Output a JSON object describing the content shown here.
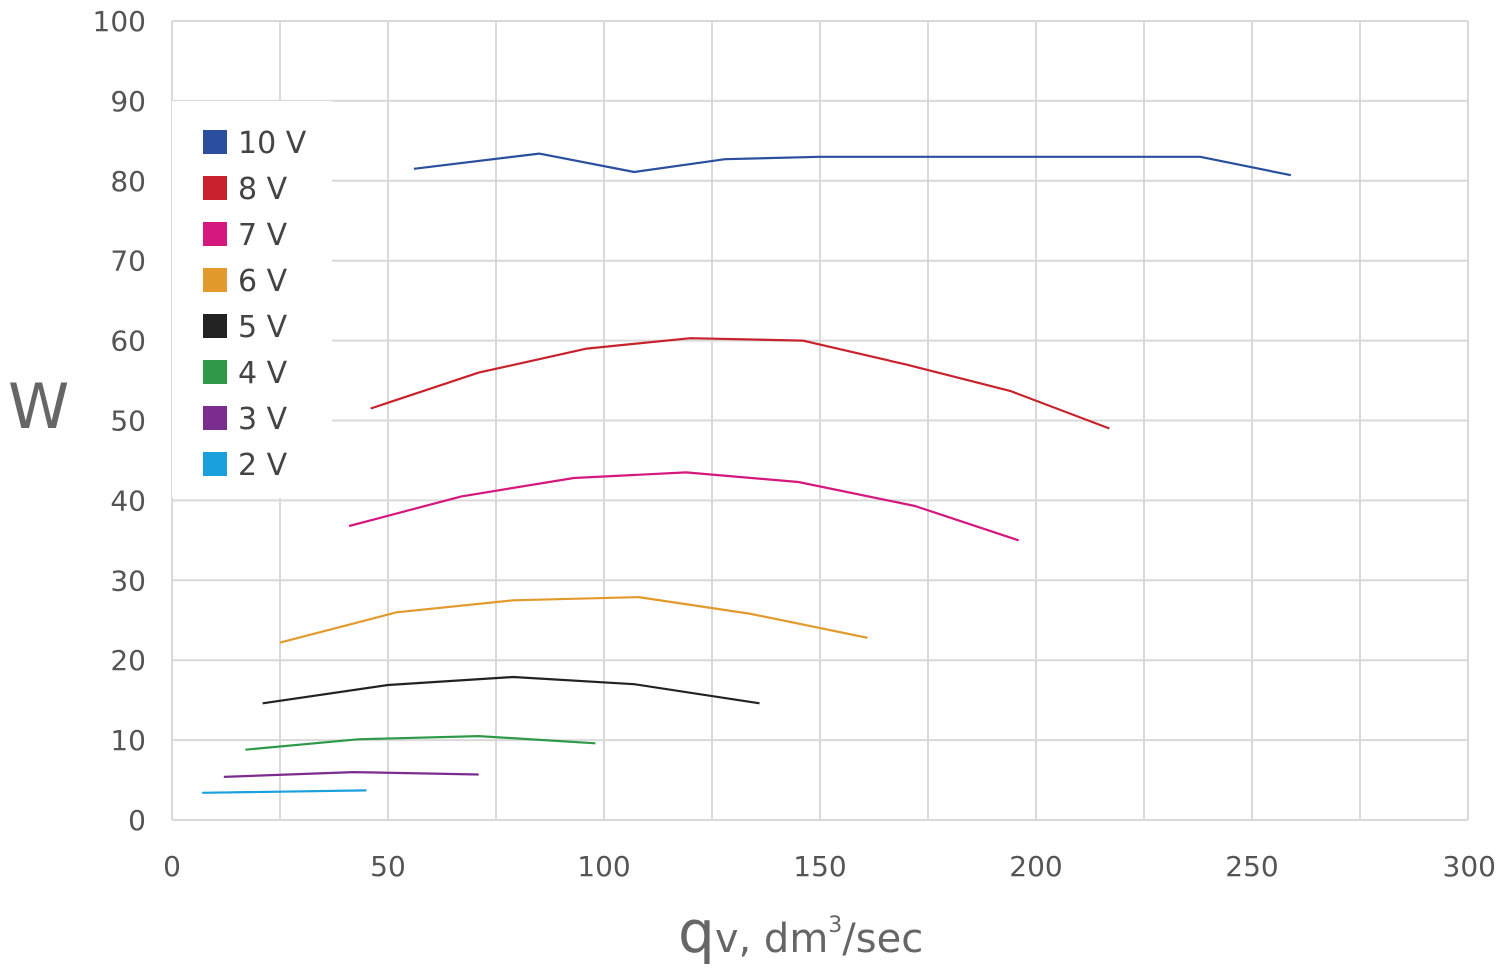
{
  "chart_data": {
    "type": "line",
    "ylabel": "W",
    "xlabel": {
      "q": "q",
      "rest": "v, dm",
      "sup": "3",
      "tail": "/sec"
    },
    "xlim": [
      0,
      300
    ],
    "ylim": [
      0,
      100
    ],
    "xticks": [
      0,
      50,
      100,
      150,
      200,
      250,
      300
    ],
    "yticks": [
      0,
      10,
      20,
      30,
      40,
      50,
      60,
      70,
      80,
      90,
      100
    ],
    "grid": true,
    "legend": "top-left",
    "series": [
      {
        "name": "10 V",
        "color": "#2b4f9e",
        "points": [
          [
            56,
            81.5
          ],
          [
            85,
            83.4
          ],
          [
            107,
            81.1
          ],
          [
            128,
            82.7
          ],
          [
            150,
            83
          ],
          [
            238,
            83
          ],
          [
            259,
            80.7
          ]
        ]
      },
      {
        "name": "8 V",
        "color": "#c8232c",
        "points": [
          [
            46,
            51.5
          ],
          [
            71,
            56
          ],
          [
            96,
            59
          ],
          [
            120,
            60.3
          ],
          [
            146,
            60
          ],
          [
            170,
            57
          ],
          [
            194,
            53.7
          ],
          [
            217,
            49
          ]
        ]
      },
      {
        "name": "7 V",
        "color": "#d4187e",
        "points": [
          [
            41,
            36.8
          ],
          [
            67,
            40.5
          ],
          [
            93,
            42.8
          ],
          [
            119,
            43.5
          ],
          [
            145,
            42.3
          ],
          [
            172,
            39.3
          ],
          [
            196,
            35
          ]
        ]
      },
      {
        "name": "6 V",
        "color": "#e39a2d",
        "points": [
          [
            25,
            22.2
          ],
          [
            52,
            26
          ],
          [
            79,
            27.5
          ],
          [
            108,
            27.9
          ],
          [
            134,
            25.8
          ],
          [
            161,
            22.8
          ]
        ]
      },
      {
        "name": "5 V",
        "color": "#222222",
        "points": [
          [
            21,
            14.6
          ],
          [
            50,
            16.9
          ],
          [
            79,
            17.9
          ],
          [
            107,
            17
          ],
          [
            136,
            14.6
          ]
        ]
      },
      {
        "name": "4 V",
        "color": "#2e9a47",
        "points": [
          [
            17,
            8.8
          ],
          [
            43,
            10.1
          ],
          [
            71,
            10.5
          ],
          [
            98,
            9.6
          ]
        ]
      },
      {
        "name": "3 V",
        "color": "#7b2c8f",
        "points": [
          [
            12,
            5.4
          ],
          [
            42,
            6
          ],
          [
            71,
            5.7
          ]
        ]
      },
      {
        "name": "2 V",
        "color": "#1aa0dc",
        "points": [
          [
            7,
            3.4
          ],
          [
            45,
            3.7
          ]
        ]
      }
    ]
  }
}
